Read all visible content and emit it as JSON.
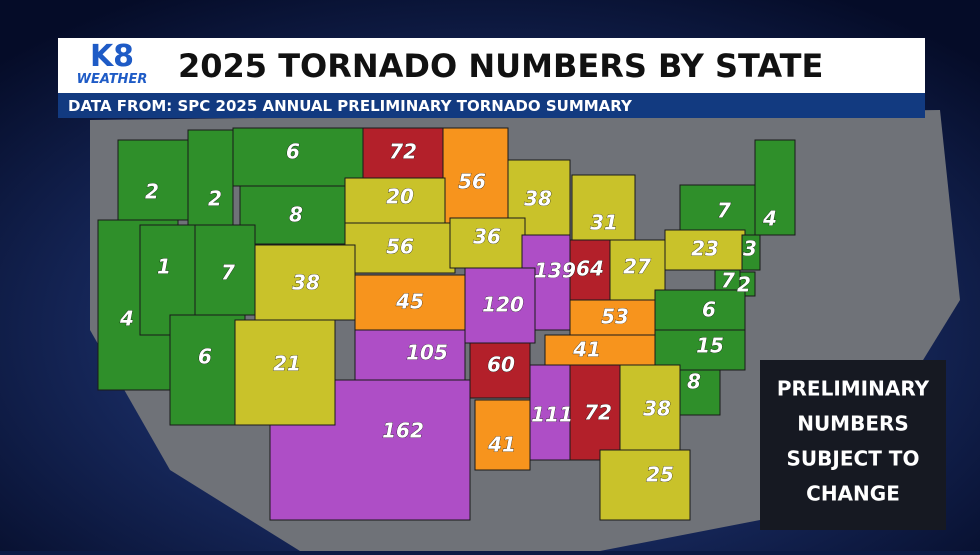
{
  "logo": {
    "number": "K8",
    "word": "WEATHER"
  },
  "header": {
    "title": "2025 TORNADO NUMBERS BY STATE",
    "subtitle": "DATA FROM: SPC 2025 ANNUAL PRELIMINARY TORNADO SUMMARY"
  },
  "states": [
    {
      "count": 4,
      "color": "#2f8f2a"
    },
    {
      "count": 2,
      "color": "#2f8f2a"
    },
    {
      "count": 2,
      "color": "#2f8f2a"
    },
    {
      "count": 6,
      "color": "#2f8f2a"
    },
    {
      "count": 72,
      "color": "#b3202a"
    },
    {
      "count": 56,
      "color": "#f7941d"
    },
    {
      "count": 38,
      "color": "#c9c22a"
    },
    {
      "count": 31,
      "color": "#c9c22a"
    },
    {
      "count": 7,
      "color": "#2f8f2a"
    },
    {
      "count": 4,
      "color": "#2f8f2a"
    },
    {
      "count": 8,
      "color": "#2f8f2a"
    },
    {
      "count": 20,
      "color": "#c9c22a"
    },
    {
      "count": 56,
      "color": "#c9c22a"
    },
    {
      "count": 36,
      "color": "#c9c22a"
    },
    {
      "count": 139,
      "color": "#ae4ec6"
    },
    {
      "count": 64,
      "color": "#b3202a"
    },
    {
      "count": 27,
      "color": "#c9c22a"
    },
    {
      "count": 23,
      "color": "#c9c22a"
    },
    {
      "count": 3,
      "color": "#2f8f2a"
    },
    {
      "count": 7,
      "color": "#2f8f2a"
    },
    {
      "count": 2,
      "color": "#2f8f2a"
    },
    {
      "count": 1,
      "color": "#2f8f2a"
    },
    {
      "count": 7,
      "color": "#2f8f2a"
    },
    {
      "count": 38,
      "color": "#c9c22a"
    },
    {
      "count": 162,
      "color": "#ae4ec6"
    },
    {
      "count": 45,
      "color": "#f7941d"
    },
    {
      "count": 120,
      "color": "#ae4ec6"
    },
    {
      "count": 53,
      "color": "#f7941d"
    },
    {
      "count": 6,
      "color": "#2f8f2a"
    },
    {
      "count": 41,
      "color": "#f7941d"
    },
    {
      "count": 15,
      "color": "#2f8f2a"
    },
    {
      "count": 6,
      "color": "#2f8f2a"
    },
    {
      "count": 21,
      "color": "#c9c22a"
    },
    {
      "count": 105,
      "color": "#ae4ec6"
    },
    {
      "count": 60,
      "color": "#b3202a"
    },
    {
      "count": 8,
      "color": "#2f8f2a"
    },
    {
      "count": 41,
      "color": "#f7941d"
    },
    {
      "count": 111,
      "color": "#ae4ec6"
    },
    {
      "count": 72,
      "color": "#b3202a"
    },
    {
      "count": 38,
      "color": "#c9c22a"
    },
    {
      "count": 25,
      "color": "#c9c22a"
    }
  ],
  "note": {
    "lines": [
      "PRELIMINARY",
      "NUMBERS",
      "SUBJECT TO",
      "CHANGE"
    ]
  }
}
